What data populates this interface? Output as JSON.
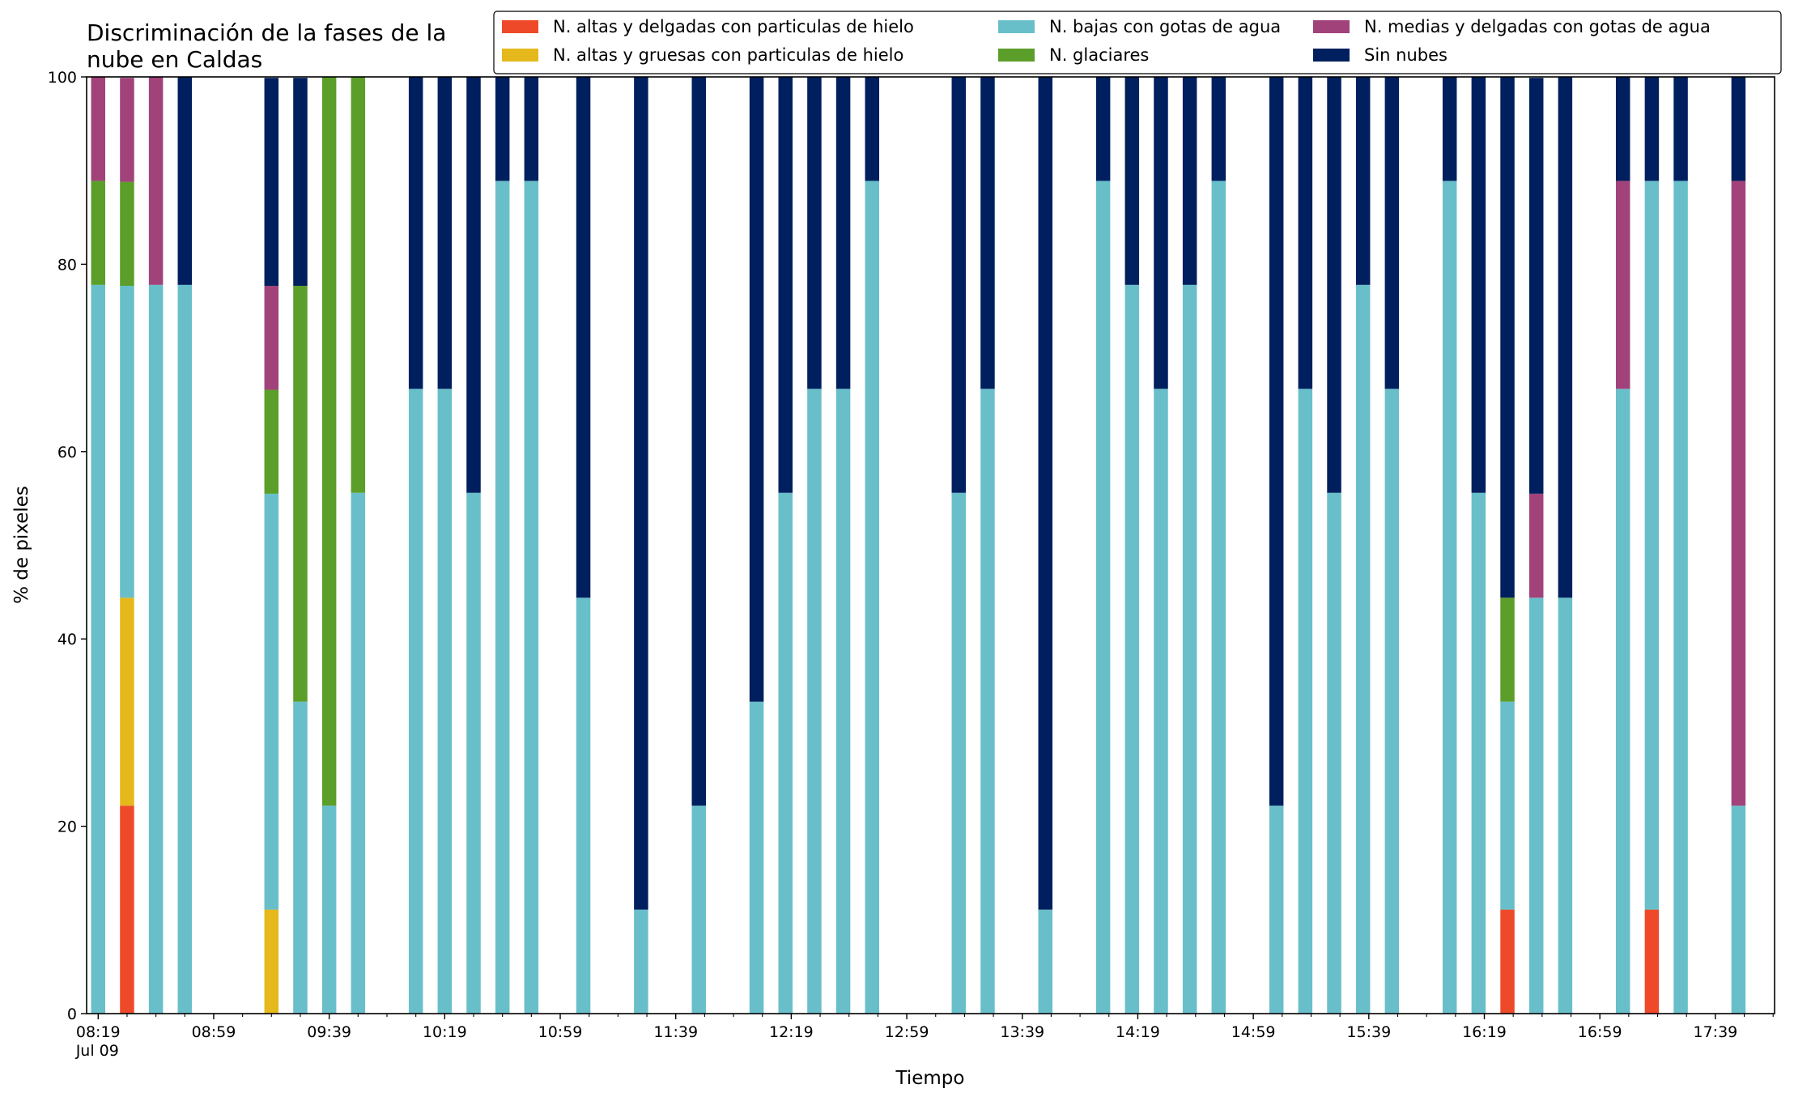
{
  "chart_data": {
    "type": "bar",
    "stacked": true,
    "title_lines": [
      "Discriminación de la fases de la",
      "nube en Caldas"
    ],
    "xlabel": "Tiempo",
    "ylabel": "% de pixeles",
    "ylim": [
      0,
      100
    ],
    "yticks": [
      0,
      20,
      40,
      60,
      80,
      100
    ],
    "grid": false,
    "legend_placement": "top-right",
    "x_start": "08:19",
    "x_end": "17:59",
    "x_minor_tick_step_minutes": 10,
    "x_major_labels": [
      {
        "time": "08:19",
        "label": "08:19",
        "sublabel": "Jul 09"
      },
      {
        "time": "08:59",
        "label": "08:59"
      },
      {
        "time": "09:39",
        "label": "09:39"
      },
      {
        "time": "10:19",
        "label": "10:19"
      },
      {
        "time": "10:59",
        "label": "10:59"
      },
      {
        "time": "11:39",
        "label": "11:39"
      },
      {
        "time": "12:19",
        "label": "12:19"
      },
      {
        "time": "12:59",
        "label": "12:59"
      },
      {
        "time": "13:39",
        "label": "13:39"
      },
      {
        "time": "14:19",
        "label": "14:19"
      },
      {
        "time": "14:59",
        "label": "14:59"
      },
      {
        "time": "15:39",
        "label": "15:39"
      },
      {
        "time": "16:19",
        "label": "16:19"
      },
      {
        "time": "16:59",
        "label": "16:59"
      },
      {
        "time": "17:39",
        "label": "17:39"
      }
    ],
    "series": [
      {
        "key": "altas_delgadas",
        "name": "N. altas y delgadas con particulas de hielo",
        "color": "#ee4a2a"
      },
      {
        "key": "altas_gruesas",
        "name": "N. altas y gruesas con particulas de hielo",
        "color": "#e5b81c"
      },
      {
        "key": "bajas",
        "name": "N. bajas con gotas de agua",
        "color": "#68bfca"
      },
      {
        "key": "glaciares",
        "name": "N. glaciares",
        "color": "#5b9e2a"
      },
      {
        "key": "medias",
        "name": "N. medias y delgadas con gotas de agua",
        "color": "#a2427a"
      },
      {
        "key": "sin_nubes",
        "name": "Sin nubes",
        "color": "#001f5e"
      }
    ],
    "legend_order": [
      "altas_delgadas",
      "bajas",
      "medias",
      "altas_gruesas",
      "glaciares",
      "sin_nubes"
    ],
    "bars": [
      {
        "time": "08:19",
        "altas_delgadas": 0,
        "altas_gruesas": 0,
        "bajas": 77.8,
        "glaciares": 11.1,
        "medias": 11.1,
        "sin_nubes": 0
      },
      {
        "time": "08:29",
        "altas_delgadas": 22.2,
        "altas_gruesas": 22.2,
        "bajas": 33.3,
        "glaciares": 11.1,
        "medias": 11.1,
        "sin_nubes": 0
      },
      {
        "time": "08:39",
        "altas_delgadas": 0,
        "altas_gruesas": 0,
        "bajas": 77.8,
        "glaciares": 0,
        "medias": 22.2,
        "sin_nubes": 0
      },
      {
        "time": "08:49",
        "altas_delgadas": 0,
        "altas_gruesas": 0,
        "bajas": 77.8,
        "glaciares": 0,
        "medias": 0,
        "sin_nubes": 22.2
      },
      {
        "time": "09:19",
        "altas_delgadas": 0,
        "altas_gruesas": 11.1,
        "bajas": 44.4,
        "glaciares": 11.1,
        "medias": 11.1,
        "sin_nubes": 22.2
      },
      {
        "time": "09:29",
        "altas_delgadas": 0,
        "altas_gruesas": 0,
        "bajas": 33.3,
        "glaciares": 44.4,
        "medias": 0,
        "sin_nubes": 22.2
      },
      {
        "time": "09:39",
        "altas_delgadas": 0,
        "altas_gruesas": 0,
        "bajas": 22.2,
        "glaciares": 77.8,
        "medias": 0,
        "sin_nubes": 0
      },
      {
        "time": "09:49",
        "altas_delgadas": 0,
        "altas_gruesas": 0,
        "bajas": 55.6,
        "glaciares": 44.4,
        "medias": 0,
        "sin_nubes": 0
      },
      {
        "time": "10:09",
        "altas_delgadas": 0,
        "altas_gruesas": 0,
        "bajas": 66.7,
        "glaciares": 0,
        "medias": 0,
        "sin_nubes": 33.3
      },
      {
        "time": "10:19",
        "altas_delgadas": 0,
        "altas_gruesas": 0,
        "bajas": 66.7,
        "glaciares": 0,
        "medias": 0,
        "sin_nubes": 33.3
      },
      {
        "time": "10:29",
        "altas_delgadas": 0,
        "altas_gruesas": 0,
        "bajas": 55.6,
        "glaciares": 0,
        "medias": 0,
        "sin_nubes": 44.4
      },
      {
        "time": "10:39",
        "altas_delgadas": 0,
        "altas_gruesas": 0,
        "bajas": 88.9,
        "glaciares": 0,
        "medias": 0,
        "sin_nubes": 11.1
      },
      {
        "time": "10:49",
        "altas_delgadas": 0,
        "altas_gruesas": 0,
        "bajas": 88.9,
        "glaciares": 0,
        "medias": 0,
        "sin_nubes": 11.1
      },
      {
        "time": "11:07",
        "altas_delgadas": 0,
        "altas_gruesas": 0,
        "bajas": 44.4,
        "glaciares": 0,
        "medias": 0,
        "sin_nubes": 55.6
      },
      {
        "time": "11:27",
        "altas_delgadas": 0,
        "altas_gruesas": 0,
        "bajas": 11.1,
        "glaciares": 0,
        "medias": 0,
        "sin_nubes": 88.9
      },
      {
        "time": "11:47",
        "altas_delgadas": 0,
        "altas_gruesas": 0,
        "bajas": 22.2,
        "glaciares": 0,
        "medias": 0,
        "sin_nubes": 77.8
      },
      {
        "time": "12:07",
        "altas_delgadas": 0,
        "altas_gruesas": 0,
        "bajas": 33.3,
        "glaciares": 0,
        "medias": 0,
        "sin_nubes": 66.7
      },
      {
        "time": "12:17",
        "altas_delgadas": 0,
        "altas_gruesas": 0,
        "bajas": 55.6,
        "glaciares": 0,
        "medias": 0,
        "sin_nubes": 44.4
      },
      {
        "time": "12:27",
        "altas_delgadas": 0,
        "altas_gruesas": 0,
        "bajas": 66.7,
        "glaciares": 0,
        "medias": 0,
        "sin_nubes": 33.3
      },
      {
        "time": "12:37",
        "altas_delgadas": 0,
        "altas_gruesas": 0,
        "bajas": 66.7,
        "glaciares": 0,
        "medias": 0,
        "sin_nubes": 33.3
      },
      {
        "time": "12:47",
        "altas_delgadas": 0,
        "altas_gruesas": 0,
        "bajas": 88.9,
        "glaciares": 0,
        "medias": 0,
        "sin_nubes": 11.1
      },
      {
        "time": "13:17",
        "altas_delgadas": 0,
        "altas_gruesas": 0,
        "bajas": 55.6,
        "glaciares": 0,
        "medias": 0,
        "sin_nubes": 44.4
      },
      {
        "time": "13:27",
        "altas_delgadas": 0,
        "altas_gruesas": 0,
        "bajas": 66.7,
        "glaciares": 0,
        "medias": 0,
        "sin_nubes": 33.3
      },
      {
        "time": "13:47",
        "altas_delgadas": 0,
        "altas_gruesas": 0,
        "bajas": 11.1,
        "glaciares": 0,
        "medias": 0,
        "sin_nubes": 88.9
      },
      {
        "time": "14:07",
        "altas_delgadas": 0,
        "altas_gruesas": 0,
        "bajas": 88.9,
        "glaciares": 0,
        "medias": 0,
        "sin_nubes": 11.1
      },
      {
        "time": "14:17",
        "altas_delgadas": 0,
        "altas_gruesas": 0,
        "bajas": 77.8,
        "glaciares": 0,
        "medias": 0,
        "sin_nubes": 22.2
      },
      {
        "time": "14:27",
        "altas_delgadas": 0,
        "altas_gruesas": 0,
        "bajas": 66.7,
        "glaciares": 0,
        "medias": 0,
        "sin_nubes": 33.3
      },
      {
        "time": "14:37",
        "altas_delgadas": 0,
        "altas_gruesas": 0,
        "bajas": 77.8,
        "glaciares": 0,
        "medias": 0,
        "sin_nubes": 22.2
      },
      {
        "time": "14:47",
        "altas_delgadas": 0,
        "altas_gruesas": 0,
        "bajas": 88.9,
        "glaciares": 0,
        "medias": 0,
        "sin_nubes": 11.1
      },
      {
        "time": "15:07",
        "altas_delgadas": 0,
        "altas_gruesas": 0,
        "bajas": 22.2,
        "glaciares": 0,
        "medias": 0,
        "sin_nubes": 77.8
      },
      {
        "time": "15:17",
        "altas_delgadas": 0,
        "altas_gruesas": 0,
        "bajas": 66.7,
        "glaciares": 0,
        "medias": 0,
        "sin_nubes": 33.3
      },
      {
        "time": "15:27",
        "altas_delgadas": 0,
        "altas_gruesas": 0,
        "bajas": 55.6,
        "glaciares": 0,
        "medias": 0,
        "sin_nubes": 44.4
      },
      {
        "time": "15:37",
        "altas_delgadas": 0,
        "altas_gruesas": 0,
        "bajas": 77.8,
        "glaciares": 0,
        "medias": 0,
        "sin_nubes": 22.2
      },
      {
        "time": "15:47",
        "altas_delgadas": 0,
        "altas_gruesas": 0,
        "bajas": 66.7,
        "glaciares": 0,
        "medias": 0,
        "sin_nubes": 33.3
      },
      {
        "time": "16:07",
        "altas_delgadas": 0,
        "altas_gruesas": 0,
        "bajas": 88.9,
        "glaciares": 0,
        "medias": 0,
        "sin_nubes": 11.1
      },
      {
        "time": "16:17",
        "altas_delgadas": 0,
        "altas_gruesas": 0,
        "bajas": 55.6,
        "glaciares": 0,
        "medias": 0,
        "sin_nubes": 44.4
      },
      {
        "time": "16:27",
        "altas_delgadas": 11.1,
        "altas_gruesas": 0,
        "bajas": 22.2,
        "glaciares": 11.1,
        "medias": 0,
        "sin_nubes": 55.6
      },
      {
        "time": "16:37",
        "altas_delgadas": 0,
        "altas_gruesas": 0,
        "bajas": 44.4,
        "glaciares": 0,
        "medias": 11.1,
        "sin_nubes": 44.4
      },
      {
        "time": "16:47",
        "altas_delgadas": 0,
        "altas_gruesas": 0,
        "bajas": 44.4,
        "glaciares": 0,
        "medias": 0,
        "sin_nubes": 55.6
      },
      {
        "time": "17:07",
        "altas_delgadas": 0,
        "altas_gruesas": 0,
        "bajas": 66.7,
        "glaciares": 0,
        "medias": 22.2,
        "sin_nubes": 11.1
      },
      {
        "time": "17:17",
        "altas_delgadas": 11.1,
        "altas_gruesas": 0,
        "bajas": 77.8,
        "glaciares": 0,
        "medias": 0,
        "sin_nubes": 11.1
      },
      {
        "time": "17:27",
        "altas_delgadas": 0,
        "altas_gruesas": 0,
        "bajas": 88.9,
        "glaciares": 0,
        "medias": 0,
        "sin_nubes": 11.1
      },
      {
        "time": "17:47",
        "altas_delgadas": 0,
        "altas_gruesas": 0,
        "bajas": 22.2,
        "glaciares": 0,
        "medias": 66.7,
        "sin_nubes": 11.1
      }
    ]
  }
}
